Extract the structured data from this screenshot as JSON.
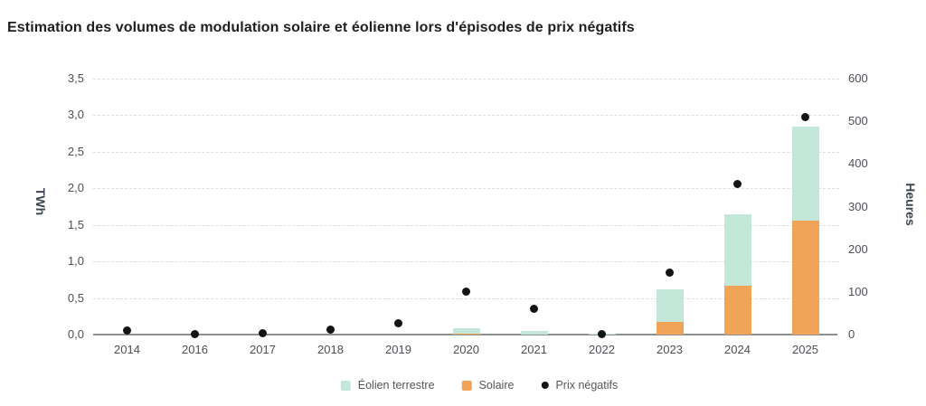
{
  "chart_data": {
    "type": "bar",
    "subtype": "stacked-bars-with-scatter-overlay",
    "title": "Estimation des volumes de modulation solaire et éolienne lors d'épisodes de prix négatifs",
    "categories": [
      "2014",
      "2016",
      "2017",
      "2018",
      "2019",
      "2020",
      "2021",
      "2022",
      "2023",
      "2024",
      "2025"
    ],
    "series": [
      {
        "name": "Solaire",
        "type": "bar",
        "axis": "left",
        "unit": "TWh",
        "color": "#f0a458",
        "values": [
          0,
          0,
          0,
          0,
          0,
          0.01,
          0,
          0,
          0.17,
          0.67,
          1.56
        ]
      },
      {
        "name": "Éolien terrestre",
        "type": "bar",
        "axis": "left",
        "unit": "TWh",
        "color": "#c3e8da",
        "values": [
          0,
          0,
          0,
          0,
          0,
          0.08,
          0.05,
          0.01,
          0.45,
          0.98,
          1.29
        ]
      },
      {
        "name": "Prix négatifs",
        "type": "scatter",
        "axis": "right",
        "unit": "Heures",
        "color": "#141414",
        "values": [
          10,
          2,
          4,
          12,
          27,
          100,
          60,
          2,
          145,
          352,
          510
        ]
      }
    ],
    "y_left": {
      "label": "TWh",
      "min": 0,
      "max": 3.5,
      "step": 0.5,
      "tick_labels": [
        "0,0",
        "0,5",
        "1,0",
        "1,5",
        "2,0",
        "2,5",
        "3,0",
        "3,5"
      ]
    },
    "y_right": {
      "label": "Heures",
      "min": 0,
      "max": 600,
      "step": 100,
      "tick_labels": [
        "0",
        "100",
        "200",
        "300",
        "400",
        "500",
        "600"
      ]
    },
    "grid": "horizontal-dashed",
    "legend_position": "bottom",
    "legend": [
      {
        "label": "Éolien terrestre",
        "swatch": "square",
        "color": "#c3e8da"
      },
      {
        "label": "Solaire",
        "swatch": "square",
        "color": "#f0a458"
      },
      {
        "label": "Prix négatifs",
        "swatch": "dot",
        "color": "#141414"
      }
    ]
  }
}
